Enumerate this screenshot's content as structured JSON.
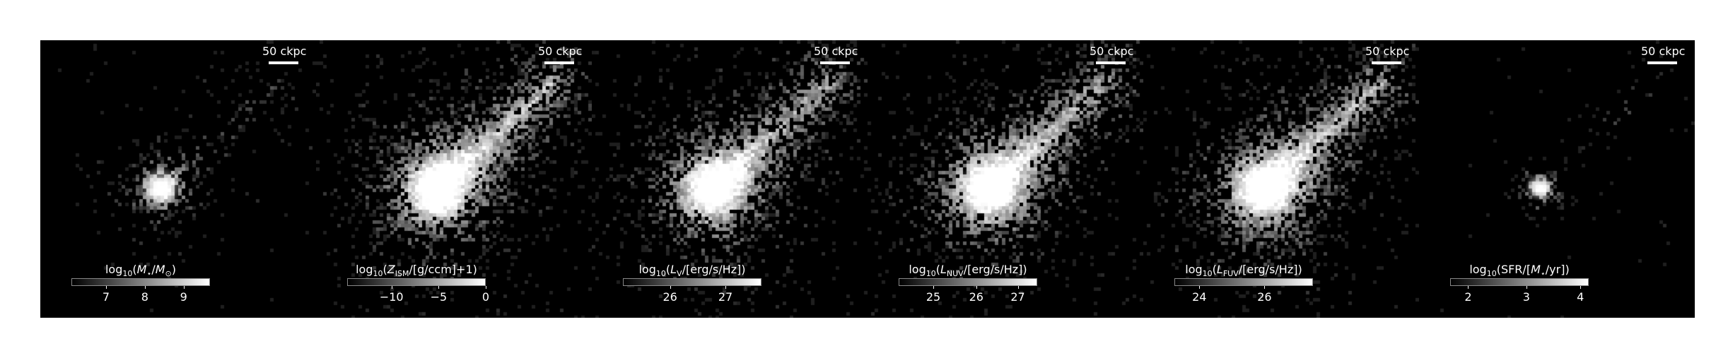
{
  "scalebar_text": "50 ckpc",
  "panels": [
    {
      "id": "stellar-mass",
      "label_html": "log<sub>10</sub>(<i>M</i><sub>⋆</sub>/<i>M</i><sub>⊙</sub>)",
      "ticks": [
        "7",
        "8",
        "9"
      ],
      "tick_fracs": [
        0.25,
        0.53,
        0.81
      ],
      "core": "compact",
      "spread": 0.55
    },
    {
      "id": "metallicity",
      "label_html": "log<sub>10</sub>(<i>Z</i><sub>ISM</sub>/[g/ccm]+1)",
      "ticks": [
        "−10",
        "−5",
        "0"
      ],
      "tick_fracs": [
        0.32,
        0.66,
        1.0
      ],
      "core": "broad",
      "spread": 1.0
    },
    {
      "id": "luminosity-v",
      "label_html": "log<sub>10</sub>(<i>L</i><sub>V</sub>/[erg/s/Hz])",
      "ticks": [
        "26",
        "27"
      ],
      "tick_fracs": [
        0.34,
        0.74
      ],
      "core": "broad",
      "spread": 0.9
    },
    {
      "id": "luminosity-nuv",
      "label_html": "log<sub>10</sub>(<i>L</i><sub>NUV</sub>/[erg/s/Hz])",
      "ticks": [
        "25",
        "26",
        "27"
      ],
      "tick_fracs": [
        0.25,
        0.56,
        0.86
      ],
      "core": "broad",
      "spread": 0.95
    },
    {
      "id": "luminosity-fuv",
      "label_html": "log<sub>10</sub>(<i>L</i><sub>FUV</sub>/[erg/s/Hz])",
      "ticks": [
        "24",
        "26"
      ],
      "tick_fracs": [
        0.18,
        0.65
      ],
      "core": "broad",
      "spread": 0.95
    },
    {
      "id": "star-formation-rate",
      "label_html": "log<sub>10</sub>(SFR/[<i>M</i><sub>⋆</sub>/yr])",
      "ticks": [
        "2",
        "3",
        "4"
      ],
      "tick_fracs": [
        0.13,
        0.55,
        0.94
      ],
      "core": "small",
      "spread": 0.2
    }
  ]
}
